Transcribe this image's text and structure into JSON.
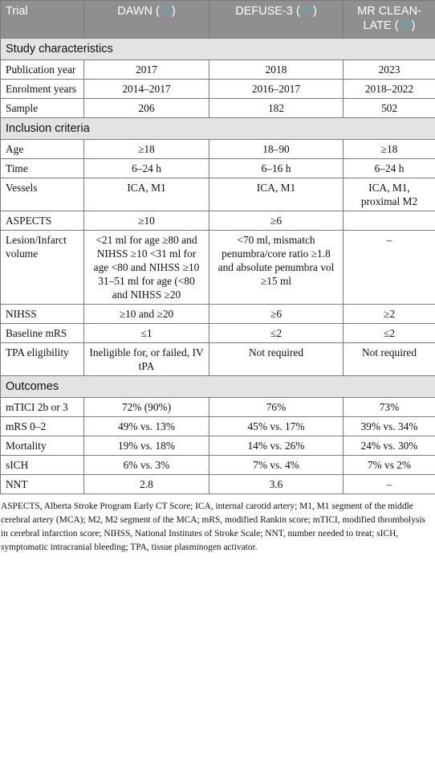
{
  "header": {
    "trial": "Trial",
    "columns": [
      {
        "name": "DAWN",
        "ref_open": " (",
        "ref": "11",
        "ref_close": ")"
      },
      {
        "name": "DEFUSE-3",
        "ref_open": " (",
        "ref": "12",
        "ref_close": ")"
      },
      {
        "name": "MR CLEAN-LATE",
        "ref_open": " (",
        "ref": "17",
        "ref_close": ")"
      }
    ]
  },
  "sections": {
    "study": {
      "title": "Study characteristics",
      "rows": [
        {
          "label": "Publication year",
          "values": [
            "2017",
            "2018",
            "2023"
          ]
        },
        {
          "label": "Enrolment years",
          "values": [
            "2014–2017",
            "2016–2017",
            "2018–2022"
          ]
        },
        {
          "label": "Sample",
          "values": [
            "206",
            "182",
            "502"
          ]
        }
      ]
    },
    "inclusion": {
      "title": "Inclusion criteria",
      "rows": [
        {
          "label": "Age",
          "values": [
            "≥18",
            "18–90",
            "≥18"
          ]
        },
        {
          "label": "Time",
          "values": [
            "6–24 h",
            "6–16 h",
            "6–24 h"
          ]
        },
        {
          "label": "Vessels",
          "values": [
            "ICA, M1",
            "ICA, M1",
            "ICA, M1, proximal M2"
          ]
        },
        {
          "label": "ASPECTS",
          "values": [
            "≥10",
            "≥6",
            ""
          ]
        },
        {
          "label": "Lesion/Infarct volume",
          "values": [
            "<21 ml for age ≥80 and NIHSS ≥10 <31 ml for age <80 and NIHSS ≥10 31–51 ml for age (<80 and NIHSS ≥20",
            "<70 ml, mismatch penumbra/core ratio ≥1.8 and absolute penumbra vol ≥15 ml",
            "–"
          ]
        },
        {
          "label": "NIHSS",
          "values": [
            "≥10 and ≥20",
            "≥6",
            "≥2"
          ]
        },
        {
          "label": "Baseline mRS",
          "values": [
            "≤1",
            "≤2",
            "≤2"
          ]
        },
        {
          "label": "TPA eligibility",
          "values": [
            "Ineligible for, or failed, IV tPA",
            "Not required",
            "Not required"
          ]
        }
      ]
    },
    "outcomes": {
      "title": "Outcomes",
      "rows": [
        {
          "label": "mTICI 2b or 3",
          "values": [
            "72% (90%)",
            "76%",
            "73%"
          ]
        },
        {
          "label": "mRS 0–2",
          "values": [
            "49% vs. 13%",
            "45% vs. 17%",
            "39% vs. 34%"
          ]
        },
        {
          "label": "Mortality",
          "values": [
            "19% vs. 18%",
            "14% vs. 26%",
            "24% vs. 30%"
          ]
        },
        {
          "label": "sICH",
          "values": [
            "6% vs. 3%",
            "7% vs. 4%",
            "7% vs 2%"
          ]
        },
        {
          "label": "NNT",
          "values": [
            "2.8",
            "3.6",
            "–"
          ]
        }
      ]
    }
  },
  "footnote": "ASPECTS, Alberta Stroke Program Early CT Score; ICA, internal carotid artery; M1, M1 segment of the middle cerebral artery (MCA); M2, M2 segment of the MCA; mRS, modified Rankin score; mTICI, modified thrombolysis in cerebral infarction score; NIHSS, National Institutes of Stroke Scale; NNT, number needed to treat; sICH, symptomatic intracranial bleeding; TPA, tissue plasminogen activator."
}
